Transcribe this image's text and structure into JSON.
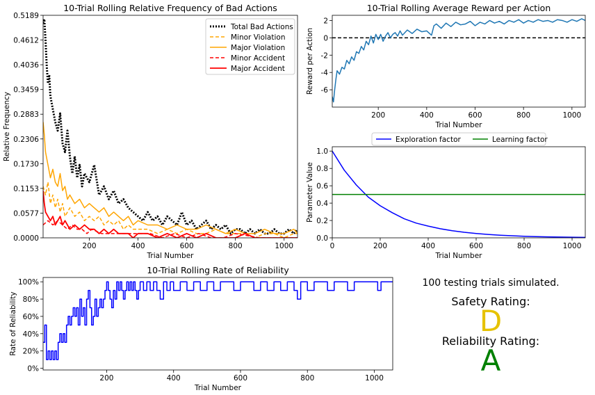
{
  "chart_data": [
    {
      "id": "bad",
      "type": "line",
      "title": "10-Trial Rolling Relative Frequency of Bad Actions",
      "xlabel": "Trial Number",
      "ylabel": "Relative Frequency",
      "xlim": [
        10,
        1055
      ],
      "ylim": [
        0,
        0.5189
      ],
      "xticks": [
        200,
        400,
        600,
        800,
        1000
      ],
      "yticks": [
        0.0,
        0.0577,
        0.1153,
        0.173,
        0.2306,
        0.2883,
        0.3459,
        0.4036,
        0.4612,
        0.5189
      ],
      "ytick_labels": [
        "0.0000",
        "0.0577",
        "0.1153",
        "0.1730",
        "0.2306",
        "0.2883",
        "0.3459",
        "0.4036",
        "0.4612",
        "0.5189"
      ],
      "legend_position": "top-right",
      "series": [
        {
          "name": "Total Bad Actions",
          "color": "#000000",
          "style": "dotted",
          "width": 3,
          "x": [
            10,
            15,
            20,
            25,
            30,
            35,
            40,
            50,
            60,
            70,
            80,
            90,
            100,
            110,
            120,
            130,
            140,
            150,
            160,
            170,
            180,
            200,
            220,
            240,
            260,
            280,
            300,
            320,
            340,
            360,
            380,
            400,
            420,
            440,
            460,
            480,
            500,
            520,
            540,
            560,
            580,
            600,
            620,
            640,
            660,
            680,
            700,
            720,
            740,
            760,
            780,
            800,
            820,
            840,
            860,
            880,
            900,
            920,
            940,
            960,
            980,
            1000,
            1020,
            1040,
            1055
          ],
          "y": [
            0.5,
            0.51,
            0.46,
            0.4,
            0.36,
            0.38,
            0.33,
            0.3,
            0.27,
            0.25,
            0.29,
            0.22,
            0.2,
            0.25,
            0.19,
            0.15,
            0.19,
            0.14,
            0.17,
            0.12,
            0.15,
            0.13,
            0.17,
            0.1,
            0.12,
            0.09,
            0.11,
            0.08,
            0.09,
            0.07,
            0.06,
            0.05,
            0.04,
            0.06,
            0.04,
            0.05,
            0.03,
            0.05,
            0.04,
            0.03,
            0.06,
            0.03,
            0.04,
            0.02,
            0.03,
            0.04,
            0.02,
            0.03,
            0.02,
            0.03,
            0.01,
            0.02,
            0.02,
            0.01,
            0.02,
            0.01,
            0.02,
            0.01,
            0.01,
            0.02,
            0.01,
            0.01,
            0.02,
            0.01,
            0.02
          ]
        },
        {
          "name": "Minor Violation",
          "color": "#ffa500",
          "style": "dashed",
          "width": 1.5,
          "x": [
            10,
            20,
            30,
            40,
            50,
            60,
            70,
            80,
            90,
            100,
            120,
            140,
            160,
            180,
            200,
            220,
            240,
            260,
            280,
            300,
            320,
            340,
            360,
            380,
            400,
            440,
            480,
            520,
            560,
            600,
            640,
            680,
            720,
            760,
            800,
            840,
            880,
            920,
            960,
            1000,
            1040,
            1055
          ],
          "y": [
            0.12,
            0.1,
            0.13,
            0.08,
            0.1,
            0.07,
            0.09,
            0.06,
            0.08,
            0.05,
            0.07,
            0.05,
            0.06,
            0.04,
            0.05,
            0.04,
            0.05,
            0.03,
            0.04,
            0.03,
            0.04,
            0.02,
            0.03,
            0.02,
            0.02,
            0.02,
            0.01,
            0.02,
            0.01,
            0.02,
            0.01,
            0.01,
            0.02,
            0.01,
            0.01,
            0.01,
            0.0,
            0.01,
            0.01,
            0.0,
            0.01,
            0.01
          ]
        },
        {
          "name": "Major Violation",
          "color": "#ffa500",
          "style": "solid",
          "width": 1.5,
          "x": [
            10,
            15,
            20,
            30,
            40,
            50,
            60,
            70,
            80,
            90,
            100,
            110,
            120,
            140,
            160,
            180,
            200,
            220,
            240,
            260,
            280,
            300,
            320,
            340,
            360,
            380,
            400,
            440,
            480,
            520,
            560,
            600,
            640,
            680,
            720,
            760,
            800,
            840,
            880,
            920,
            960,
            1000,
            1040,
            1055
          ],
          "y": [
            0.27,
            0.24,
            0.2,
            0.17,
            0.14,
            0.16,
            0.13,
            0.12,
            0.15,
            0.11,
            0.12,
            0.09,
            0.1,
            0.08,
            0.09,
            0.07,
            0.08,
            0.07,
            0.06,
            0.07,
            0.05,
            0.06,
            0.05,
            0.04,
            0.05,
            0.03,
            0.04,
            0.03,
            0.03,
            0.02,
            0.03,
            0.02,
            0.02,
            0.03,
            0.02,
            0.01,
            0.02,
            0.01,
            0.01,
            0.02,
            0.01,
            0.01,
            0.02,
            0.01
          ]
        },
        {
          "name": "Minor Accident",
          "color": "#ff0000",
          "style": "dashed",
          "width": 1.5,
          "x": [
            10,
            30,
            50,
            70,
            90,
            110,
            130,
            150,
            170,
            190,
            210,
            250,
            300,
            350,
            400,
            450,
            500,
            550,
            600,
            650,
            700,
            750,
            800,
            900,
            1000,
            1055
          ],
          "y": [
            0.03,
            0.04,
            0.03,
            0.04,
            0.03,
            0.02,
            0.03,
            0.02,
            0.02,
            0.01,
            0.02,
            0.01,
            0.01,
            0.01,
            0.01,
            0.01,
            0.0,
            0.01,
            0.0,
            0.01,
            0.0,
            0.0,
            0.01,
            0.0,
            0.0,
            0.0
          ]
        },
        {
          "name": "Major Accident",
          "color": "#ff0000",
          "style": "solid",
          "width": 1.8,
          "x": [
            10,
            15,
            20,
            30,
            40,
            50,
            60,
            70,
            80,
            90,
            100,
            110,
            120,
            140,
            160,
            180,
            200,
            220,
            240,
            260,
            280,
            300,
            320,
            340,
            360,
            380,
            400,
            440,
            480,
            520,
            560,
            600,
            640,
            680,
            720,
            760,
            800,
            840,
            880,
            920,
            960,
            1000,
            1040,
            1055
          ],
          "y": [
            0.11,
            0.08,
            0.06,
            0.05,
            0.04,
            0.05,
            0.03,
            0.04,
            0.05,
            0.03,
            0.04,
            0.03,
            0.02,
            0.03,
            0.02,
            0.03,
            0.02,
            0.02,
            0.01,
            0.02,
            0.01,
            0.02,
            0.01,
            0.01,
            0.01,
            0.0,
            0.01,
            0.01,
            0.0,
            0.01,
            0.0,
            0.01,
            0.0,
            0.01,
            0.0,
            0.0,
            0.0,
            0.01,
            0.0,
            0.0,
            0.0,
            0.0,
            0.0,
            0.0
          ]
        }
      ]
    },
    {
      "id": "reward",
      "type": "line",
      "title": "10-Trial Rolling Average Reward per Action",
      "xlabel": "Trial Number",
      "ylabel": "Reward per Action",
      "xlim": [
        10,
        1055
      ],
      "ylim": [
        -8,
        2.6
      ],
      "xticks": [
        200,
        400,
        600,
        800,
        1000
      ],
      "yticks": [
        2,
        0,
        -2,
        -4,
        -6
      ],
      "reference_line": 0,
      "series": [
        {
          "name": "",
          "color": "#1f77b4",
          "x": [
            10,
            15,
            20,
            25,
            30,
            40,
            50,
            60,
            70,
            80,
            90,
            100,
            110,
            120,
            130,
            140,
            150,
            160,
            170,
            180,
            190,
            200,
            210,
            220,
            230,
            240,
            250,
            260,
            270,
            280,
            290,
            300,
            320,
            340,
            360,
            380,
            400,
            420,
            430,
            440,
            460,
            480,
            500,
            520,
            540,
            560,
            580,
            600,
            620,
            640,
            660,
            680,
            700,
            720,
            740,
            760,
            780,
            800,
            820,
            840,
            860,
            880,
            900,
            920,
            940,
            960,
            980,
            1000,
            1020,
            1040,
            1055
          ],
          "y": [
            -6.8,
            -7.4,
            -6.0,
            -4.8,
            -3.8,
            -4.2,
            -3.4,
            -3.6,
            -2.6,
            -3.0,
            -2.2,
            -2.6,
            -1.6,
            -1.8,
            -1.0,
            -1.4,
            -0.4,
            -0.8,
            0.2,
            -0.6,
            0.4,
            -0.2,
            0.4,
            -0.4,
            0.2,
            0.6,
            0.0,
            0.4,
            0.6,
            0.2,
            0.8,
            0.3,
            0.9,
            0.5,
            1.0,
            0.7,
            0.8,
            0.3,
            1.4,
            1.6,
            1.1,
            1.7,
            1.3,
            1.8,
            1.5,
            1.6,
            1.9,
            1.4,
            1.8,
            1.6,
            2.0,
            1.7,
            1.9,
            1.6,
            2.0,
            1.8,
            2.1,
            1.7,
            2.0,
            1.8,
            2.1,
            1.9,
            2.0,
            1.8,
            2.1,
            2.0,
            1.8,
            2.1,
            1.9,
            2.2,
            2.0
          ]
        }
      ]
    },
    {
      "id": "params",
      "type": "line",
      "title": "",
      "xlabel": "Trial Number",
      "ylabel": "Parameter Value",
      "xlim": [
        0,
        1055
      ],
      "ylim": [
        0,
        1.05
      ],
      "xticks": [
        0,
        200,
        400,
        600,
        800,
        1000
      ],
      "yticks": [
        0.0,
        0.2,
        0.4,
        0.6,
        0.8,
        1.0
      ],
      "ytick_labels": [
        "0.0",
        "0.2",
        "0.4",
        "0.6",
        "0.8",
        "1.0"
      ],
      "legend_position": "top-center",
      "series": [
        {
          "name": "Exploration factor",
          "color": "#0000ff",
          "x": [
            0,
            50,
            100,
            150,
            200,
            250,
            300,
            350,
            400,
            450,
            500,
            550,
            600,
            650,
            700,
            750,
            800,
            850,
            900,
            950,
            1000,
            1055
          ],
          "y": [
            1.0,
            0.78,
            0.61,
            0.47,
            0.37,
            0.29,
            0.22,
            0.17,
            0.135,
            0.105,
            0.082,
            0.064,
            0.05,
            0.039,
            0.03,
            0.024,
            0.018,
            0.014,
            0.011,
            0.009,
            0.007,
            0.005
          ]
        },
        {
          "name": "Learning factor",
          "color": "#008000",
          "x": [
            0,
            1055
          ],
          "y": [
            0.5,
            0.5
          ]
        }
      ]
    },
    {
      "id": "reliability",
      "type": "line",
      "title": "10-Trial Rolling Rate of Reliability",
      "xlabel": "Trial Number",
      "ylabel": "Rate of Reliability",
      "xlim": [
        10,
        1055
      ],
      "ylim": [
        -0.02,
        1.05
      ],
      "xticks": [
        200,
        400,
        600,
        800,
        1000
      ],
      "yticks": [
        0,
        0.2,
        0.4,
        0.6,
        0.8,
        1.0
      ],
      "ytick_labels": [
        "0%",
        "20%",
        "40%",
        "60%",
        "80%",
        "100%"
      ],
      "series": [
        {
          "name": "",
          "color": "#0000ff",
          "step": true,
          "x": [
            10,
            15,
            20,
            25,
            30,
            35,
            40,
            45,
            50,
            55,
            60,
            65,
            70,
            75,
            80,
            85,
            90,
            95,
            100,
            105,
            110,
            115,
            120,
            125,
            130,
            135,
            140,
            145,
            150,
            155,
            160,
            165,
            170,
            175,
            180,
            185,
            190,
            195,
            200,
            205,
            210,
            215,
            220,
            225,
            230,
            235,
            240,
            245,
            250,
            255,
            260,
            265,
            270,
            275,
            280,
            285,
            290,
            295,
            300,
            310,
            320,
            330,
            340,
            350,
            360,
            370,
            380,
            390,
            400,
            420,
            440,
            460,
            480,
            500,
            520,
            540,
            560,
            580,
            600,
            620,
            640,
            660,
            680,
            700,
            720,
            740,
            760,
            770,
            780,
            800,
            820,
            840,
            860,
            880,
            900,
            920,
            940,
            960,
            980,
            1000,
            1010,
            1020,
            1040,
            1055
          ],
          "y": [
            0.3,
            0.5,
            0.1,
            0.2,
            0.1,
            0.2,
            0.1,
            0.2,
            0.1,
            0.3,
            0.4,
            0.3,
            0.4,
            0.3,
            0.5,
            0.6,
            0.5,
            0.6,
            0.7,
            0.6,
            0.7,
            0.5,
            0.8,
            0.6,
            0.7,
            0.5,
            0.8,
            0.9,
            0.7,
            0.5,
            0.6,
            0.8,
            0.6,
            0.7,
            0.8,
            0.7,
            0.8,
            0.9,
            1.0,
            0.9,
            0.8,
            0.7,
            0.9,
            0.8,
            1.0,
            0.9,
            1.0,
            0.9,
            0.8,
            0.9,
            1.0,
            0.9,
            1.0,
            0.9,
            1.0,
            0.9,
            0.8,
            0.9,
            1.0,
            0.9,
            1.0,
            0.9,
            1.0,
            0.9,
            0.8,
            1.0,
            0.9,
            1.0,
            0.9,
            1.0,
            0.9,
            1.0,
            0.9,
            1.0,
            0.9,
            1.0,
            1.0,
            0.9,
            1.0,
            1.0,
            0.9,
            1.0,
            0.9,
            1.0,
            0.9,
            1.0,
            0.9,
            0.8,
            1.0,
            0.9,
            1.0,
            1.0,
            0.9,
            1.0,
            1.0,
            0.9,
            1.0,
            1.0,
            1.0,
            1.0,
            0.9,
            1.0,
            1.0,
            1.0
          ]
        }
      ]
    }
  ],
  "summary": {
    "trials_text": "100 testing trials simulated.",
    "safety_label": "Safety Rating:",
    "safety_grade": "D",
    "safety_color": "#e6c200",
    "reliability_label": "Reliability Rating:",
    "reliability_grade": "A",
    "reliability_color": "#008000"
  }
}
